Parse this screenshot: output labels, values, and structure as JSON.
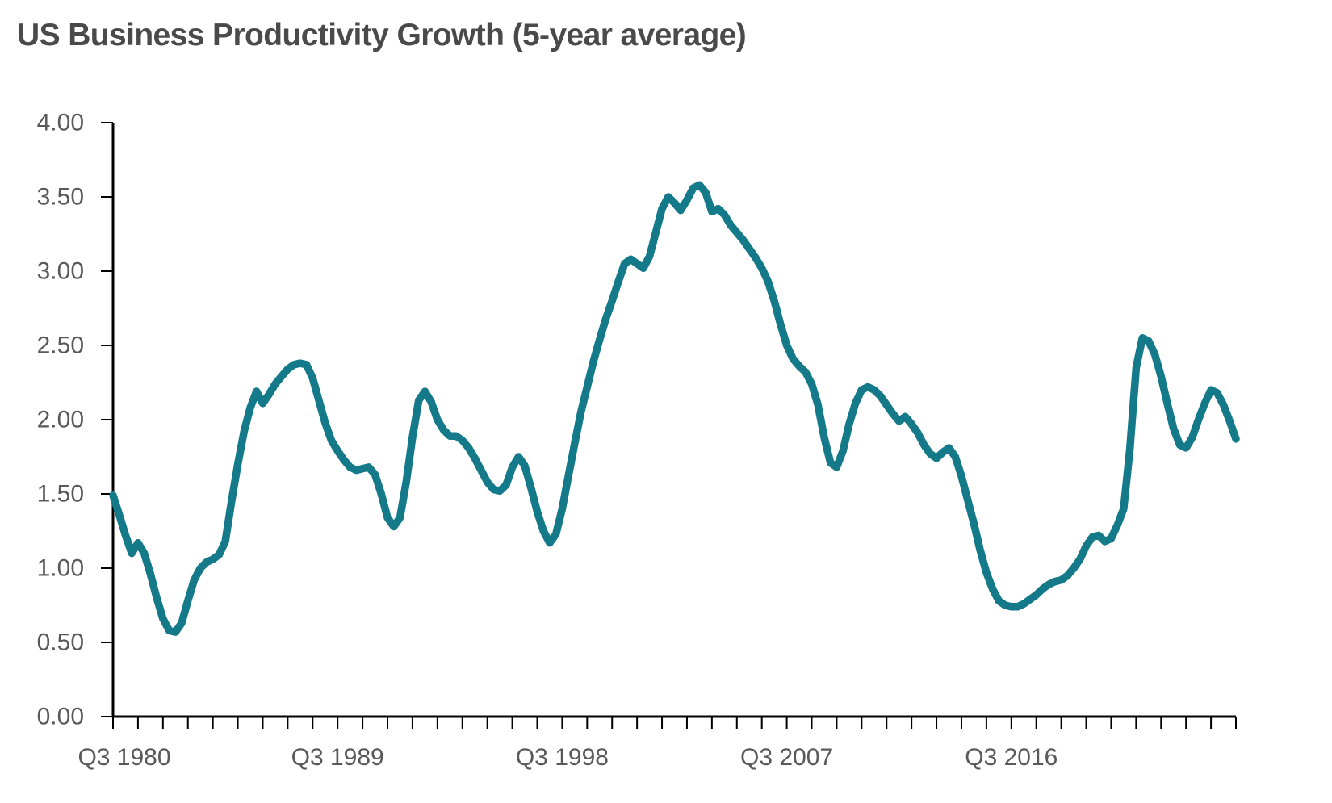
{
  "title": "US Business Productivity Growth (5-year average)",
  "colors": {
    "line": "#147a8a",
    "axis": "#000000",
    "tick": "#000000",
    "axis_label": "#595959",
    "title": "#4a4a4a",
    "background": "#ffffff"
  },
  "chart_data": {
    "type": "line",
    "title": "US Business Productivity Growth (5-year average)",
    "xlabel": "",
    "ylabel": "",
    "grid": false,
    "legend": "none",
    "y_axis": {
      "min": 0,
      "max": 4,
      "step": 0.5,
      "decimals": 2,
      "tick_labels": [
        "0.00",
        "0.50",
        "1.00",
        "1.50",
        "2.00",
        "2.50",
        "3.00",
        "3.50",
        "4.00"
      ]
    },
    "x_axis": {
      "unit": "quarter",
      "points_per_year": 4,
      "years_total": 45,
      "minor_tick_every_years": 1,
      "visible_labels": [
        {
          "label": "Q3 1980",
          "year_index": 0
        },
        {
          "label": "Q3 1989",
          "year_index": 9
        },
        {
          "label": "Q3 1998",
          "year_index": 18
        },
        {
          "label": "Q3 2007",
          "year_index": 27
        },
        {
          "label": "Q3 2016",
          "year_index": 36
        }
      ]
    },
    "series": [
      {
        "name": "US business productivity growth, 5-year average",
        "start_label": "Q3 1980",
        "values": [
          1.49,
          1.36,
          1.22,
          1.1,
          1.17,
          1.1,
          0.96,
          0.8,
          0.66,
          0.58,
          0.57,
          0.63,
          0.78,
          0.92,
          1.0,
          1.04,
          1.06,
          1.09,
          1.18,
          1.45,
          1.7,
          1.92,
          2.08,
          2.19,
          2.11,
          2.17,
          2.24,
          2.29,
          2.34,
          2.37,
          2.38,
          2.37,
          2.28,
          2.13,
          1.98,
          1.86,
          1.79,
          1.73,
          1.68,
          1.66,
          1.67,
          1.68,
          1.63,
          1.5,
          1.34,
          1.28,
          1.34,
          1.58,
          1.88,
          2.13,
          2.19,
          2.12,
          2.0,
          1.93,
          1.89,
          1.89,
          1.86,
          1.81,
          1.74,
          1.66,
          1.58,
          1.53,
          1.52,
          1.56,
          1.68,
          1.75,
          1.69,
          1.54,
          1.38,
          1.25,
          1.17,
          1.23,
          1.4,
          1.62,
          1.84,
          2.05,
          2.22,
          2.39,
          2.54,
          2.68,
          2.8,
          2.93,
          3.05,
          3.08,
          3.05,
          3.02,
          3.1,
          3.26,
          3.42,
          3.5,
          3.46,
          3.41,
          3.48,
          3.56,
          3.58,
          3.53,
          3.4,
          3.42,
          3.38,
          3.31,
          3.26,
          3.21,
          3.15,
          3.09,
          3.02,
          2.93,
          2.8,
          2.64,
          2.5,
          2.41,
          2.36,
          2.32,
          2.24,
          2.1,
          1.88,
          1.71,
          1.68,
          1.79,
          1.97,
          2.11,
          2.2,
          2.22,
          2.2,
          2.16,
          2.1,
          2.04,
          1.99,
          2.02,
          1.97,
          1.91,
          1.83,
          1.77,
          1.74,
          1.78,
          1.81,
          1.75,
          1.62,
          1.46,
          1.3,
          1.12,
          0.97,
          0.86,
          0.78,
          0.75,
          0.74,
          0.74,
          0.76,
          0.79,
          0.82,
          0.86,
          0.89,
          0.91,
          0.92,
          0.95,
          1.0,
          1.06,
          1.15,
          1.21,
          1.22,
          1.18,
          1.2,
          1.29,
          1.4,
          1.8,
          2.35,
          2.55,
          2.53,
          2.44,
          2.29,
          2.11,
          1.94,
          1.83,
          1.81,
          1.88,
          2.0,
          2.11,
          2.2,
          2.18,
          2.1,
          1.99,
          1.87
        ]
      }
    ]
  }
}
